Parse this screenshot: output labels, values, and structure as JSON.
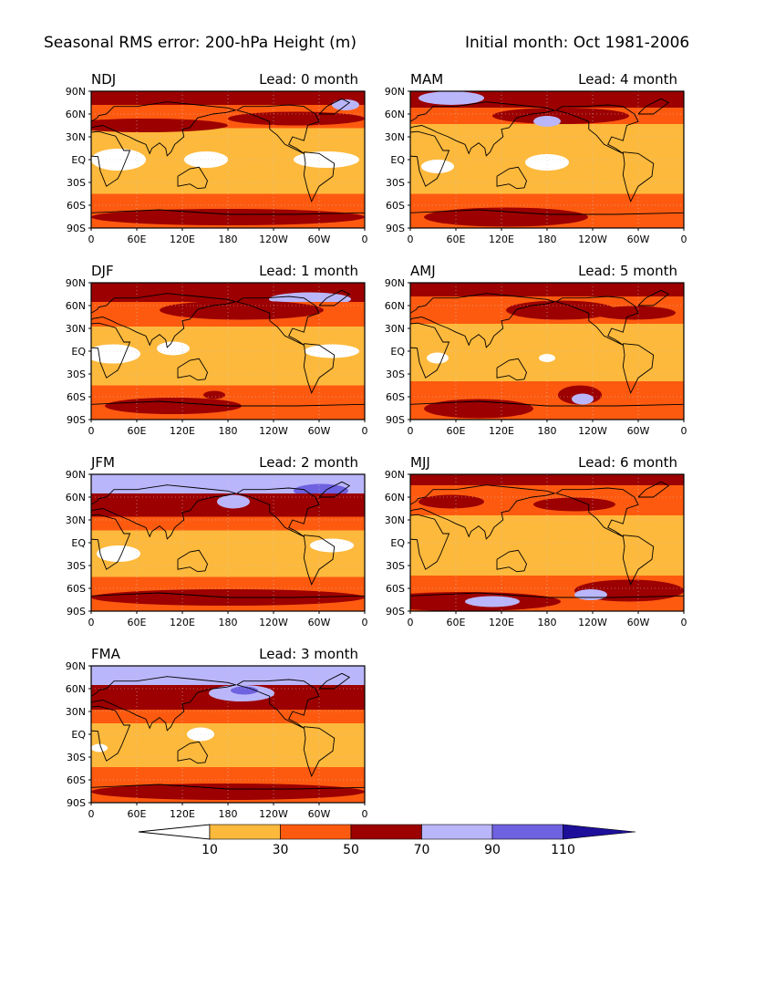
{
  "header": {
    "title": "Seasonal RMS error: 200-hPa Height (m)",
    "initial": "Initial month: Oct 1981-2006"
  },
  "axes": {
    "lat_ticks": [
      "90N",
      "60N",
      "30N",
      "EQ",
      "30S",
      "60S",
      "90S"
    ],
    "lon_ticks": [
      "0",
      "60E",
      "120E",
      "180",
      "120W",
      "60W",
      "0"
    ]
  },
  "panels": [
    {
      "season": "NDJ",
      "lead": "Lead: 0 month"
    },
    {
      "season": "MAM",
      "lead": "Lead: 4 month"
    },
    {
      "season": "DJF",
      "lead": "Lead: 1 month"
    },
    {
      "season": "AMJ",
      "lead": "Lead: 5 month"
    },
    {
      "season": "JFM",
      "lead": "Lead: 2 month"
    },
    {
      "season": "MJJ",
      "lead": "Lead: 6 month"
    },
    {
      "season": "FMA",
      "lead": "Lead: 3 month"
    }
  ],
  "colorbar": {
    "labels": [
      "10",
      "30",
      "50",
      "70",
      "90",
      "110"
    ],
    "colors": [
      "#ffffff",
      "#fdb93c",
      "#fd5a10",
      "#ff2a00",
      "#9c0000",
      "#bab6fb",
      "#6e62e0",
      "#1e0f9b"
    ]
  },
  "colors": {
    "land_outline": "#000000",
    "grid": "#c8c8c8"
  }
}
